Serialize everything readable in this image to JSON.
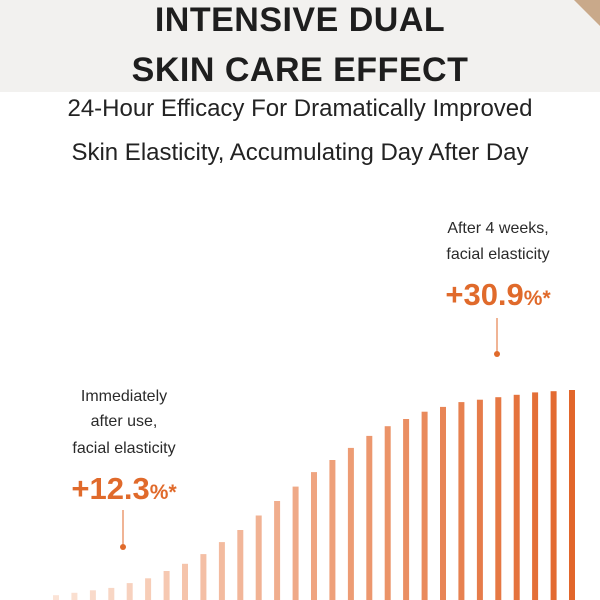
{
  "heading": {
    "line1": "INTENSIVE DUAL",
    "line2": "SKIN CARE EFFECT"
  },
  "subheading": {
    "line1": "24-Hour Efficacy For Dramatically Improved",
    "line2": "Skin Elasticity, Accumulating Day After Day"
  },
  "callouts": {
    "immediate": {
      "line1": "Immediately",
      "line2": "after use,",
      "line3": "facial elasticity",
      "value": "+12.3",
      "unit": "%*"
    },
    "weeks4": {
      "line1": "After 4 weeks,",
      "line2": "facial elasticity",
      "value": "+30.9",
      "unit": "%*"
    }
  },
  "colors": {
    "accent": "#e06a2b",
    "bar_light": "#fbe3d6",
    "bar_dark": "#e2662b"
  },
  "chart_data": {
    "type": "bar",
    "title": "",
    "xlabel": "",
    "ylabel": "",
    "ylim": [
      0,
      100
    ],
    "values": [
      2,
      3,
      4,
      5,
      7,
      9,
      12,
      15,
      19,
      24,
      29,
      35,
      41,
      47,
      53,
      58,
      63,
      68,
      72,
      75,
      78,
      80,
      82,
      83,
      84,
      85,
      86,
      86.5,
      87
    ]
  }
}
